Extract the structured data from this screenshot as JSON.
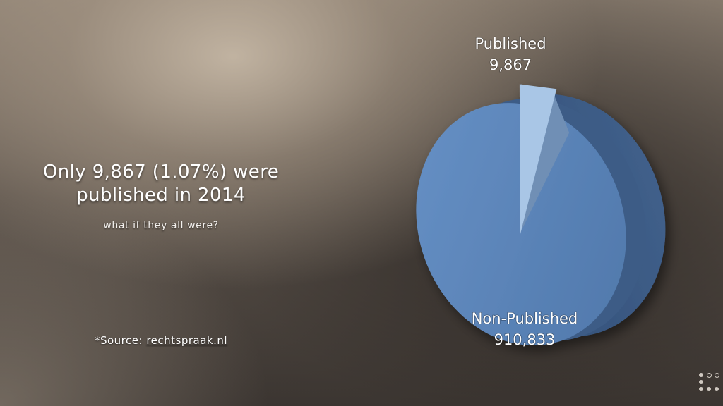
{
  "slide": {
    "headline_line1": "Only 9,867 (1.07%) were",
    "headline_line2": "published in 2014",
    "subtitle": "what if they all were?",
    "source_prefix": "*Source: ",
    "source_link": "rechtspraak.nl"
  },
  "chart_data": {
    "type": "pie",
    "style": "3d",
    "categories": [
      "Published",
      "Non-Published"
    ],
    "values": [
      9867,
      910833
    ],
    "value_labels": [
      "9,867",
      "910,833"
    ],
    "colors": [
      "#a9c6e6",
      "#5b84b8"
    ]
  },
  "icons": {
    "nav": "slide-navigation-dots-icon"
  }
}
